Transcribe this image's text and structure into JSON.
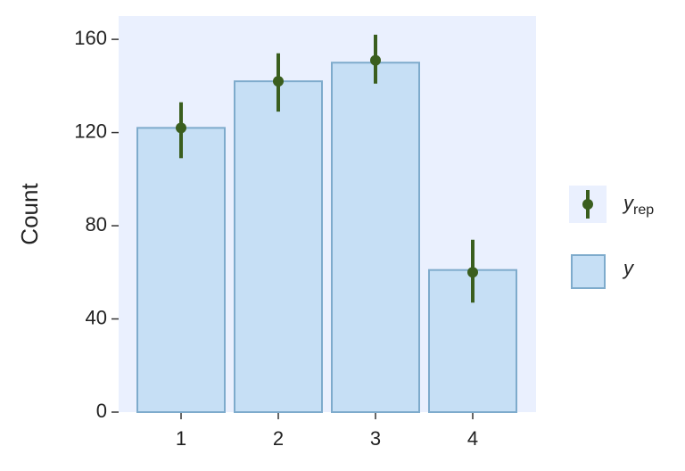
{
  "chart_data": {
    "type": "bar",
    "y_label": "Count",
    "categories": [
      "1",
      "2",
      "3",
      "4"
    ],
    "ylim": [
      0,
      170
    ],
    "yticks": [
      0,
      40,
      80,
      120,
      160
    ],
    "background": "#eaf0fe",
    "series": [
      {
        "name": "y",
        "color": "#c6dff5",
        "edge_color": "#7eabcc",
        "values": [
          122,
          142,
          150,
          61
        ]
      },
      {
        "name": "y",
        "subscript": "rep",
        "color": "#3a5e1e",
        "values": [
          122,
          142,
          151,
          60
        ],
        "low": [
          109,
          129,
          141,
          47
        ],
        "high": [
          133,
          154,
          162,
          74
        ]
      }
    ]
  }
}
